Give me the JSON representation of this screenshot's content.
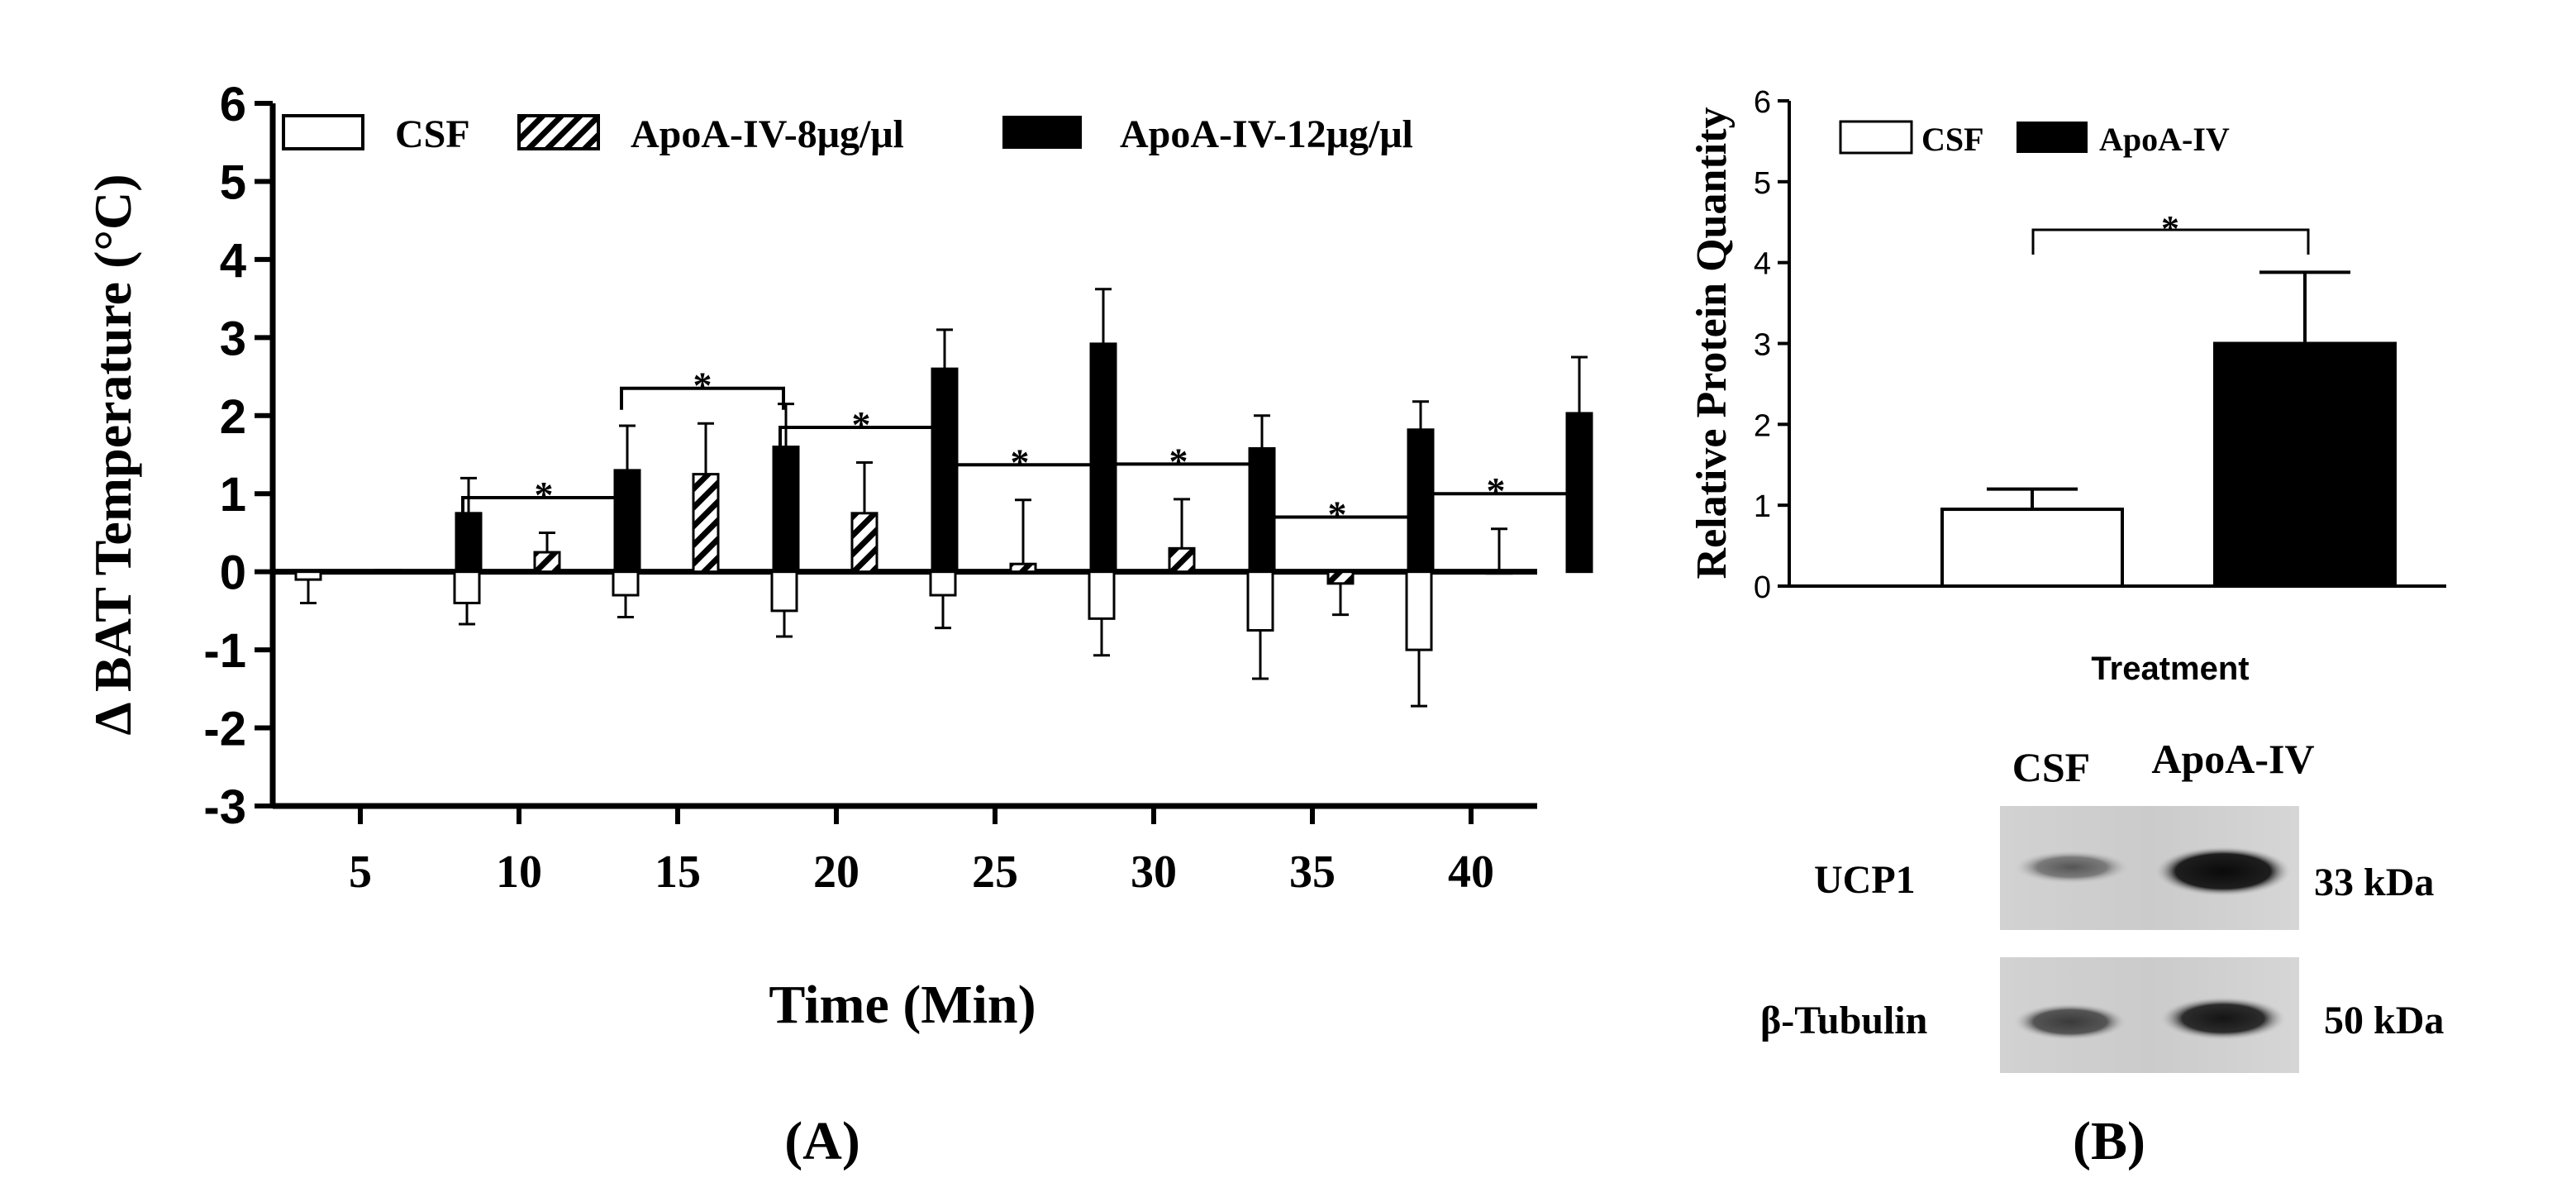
{
  "chart_data": [
    {
      "type": "bar",
      "panel_label": "(A)",
      "title": "",
      "xlabel": "Time (Min)",
      "ylabel": "Δ BAT Temperature (°C)",
      "ylim": [
        -3,
        6
      ],
      "yticks": [
        "6",
        "5",
        "4",
        "3",
        "2",
        "1",
        "0",
        "-1",
        "-2",
        "-3"
      ],
      "categories": [
        "5",
        "10",
        "15",
        "20",
        "25",
        "30",
        "35",
        "40"
      ],
      "legend_position": "top",
      "series": [
        {
          "name": "CSF",
          "legend_label": "CSF",
          "fill": "white",
          "values": [
            -0.1,
            -0.4,
            -0.3,
            -0.5,
            -0.3,
            -0.6,
            -0.75,
            -1.0
          ],
          "errors": [
            0.3,
            0.27,
            0.28,
            0.33,
            0.42,
            0.47,
            0.62,
            0.72
          ]
        },
        {
          "name": "ApoA-IV-8μg/μl",
          "legend_label": "ApoA-IV-8μg/μl",
          "fill": "hatched",
          "values": [
            0.02,
            0.25,
            1.25,
            0.75,
            0.1,
            0.3,
            -0.15,
            0.0
          ],
          "errors": [
            0.0,
            0.25,
            0.65,
            0.65,
            0.82,
            0.63,
            0.4,
            0.55
          ]
        },
        {
          "name": "ApoA-IV-12μg/μl",
          "legend_label": "ApoA-IV-12μg/μl",
          "fill": "black",
          "values": [
            0.75,
            1.3,
            1.6,
            2.6,
            2.92,
            1.58,
            1.82,
            2.03
          ],
          "errors": [
            0.45,
            0.57,
            0.55,
            0.5,
            0.7,
            0.42,
            0.36,
            0.72
          ]
        }
      ],
      "significance": [
        {
          "x": "10",
          "star": "*"
        },
        {
          "x": "15",
          "star": "*"
        },
        {
          "x": "20",
          "star": "*"
        },
        {
          "x": "25",
          "star": "*"
        },
        {
          "x": "30",
          "star": "*"
        },
        {
          "x": "35",
          "star": "*"
        },
        {
          "x": "40",
          "star": "*"
        }
      ]
    },
    {
      "type": "bar",
      "panel_label": "(B)",
      "title": "",
      "xlabel": "Treatment",
      "ylabel": "Relative Protein Quantity",
      "ylim": [
        0,
        6
      ],
      "yticks": [
        "6",
        "5",
        "4",
        "3",
        "2",
        "1",
        "0"
      ],
      "legend_position": "top-left",
      "categories": [
        "CSF",
        "ApoA-IV"
      ],
      "series": [
        {
          "name": "Relative Protein Quantity",
          "values": [
            0.95,
            3.0
          ],
          "errors": [
            0.25,
            0.88
          ],
          "fills": [
            "white",
            "black"
          ]
        }
      ],
      "legend": [
        {
          "label": "CSF",
          "fill": "white"
        },
        {
          "label": "ApoA-IV",
          "fill": "black"
        }
      ],
      "significance": [
        {
          "between": [
            "CSF",
            "ApoA-IV"
          ],
          "star": "*"
        }
      ]
    }
  ],
  "western_blot": {
    "lane_labels": [
      "CSF",
      "ApoA-IV"
    ],
    "rows": [
      {
        "protein": "UCP1",
        "size": "33 kDa"
      },
      {
        "protein": "β-Tubulin",
        "size": "50 kDa"
      }
    ]
  }
}
